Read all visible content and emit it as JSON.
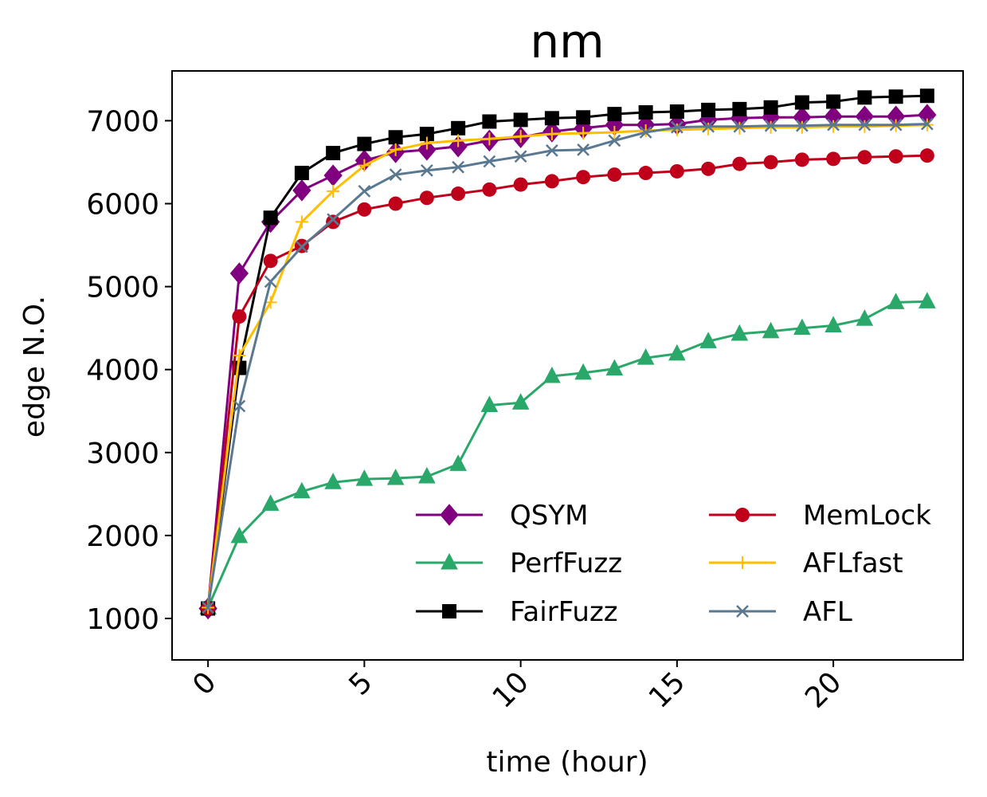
{
  "chart_data": {
    "type": "line",
    "title": "nm",
    "xlabel": "time (hour)",
    "ylabel": "edge N.O.",
    "xlim": [
      -1.15,
      24.15
    ],
    "ylim": [
      500,
      7600
    ],
    "xticks": [
      0,
      5,
      10,
      15,
      20
    ],
    "yticks": [
      1000,
      2000,
      3000,
      4000,
      5000,
      6000,
      7000
    ],
    "x": [
      0,
      1,
      2,
      3,
      4,
      5,
      6,
      7,
      8,
      9,
      10,
      11,
      12,
      13,
      14,
      15,
      16,
      17,
      18,
      19,
      20,
      21,
      22,
      23
    ],
    "legend_position": "lower-right",
    "legend_columns": 2,
    "grid": false,
    "series": [
      {
        "name": "QSYM",
        "color": "#800080",
        "marker": "diamond",
        "values": [
          1120,
          5160,
          5780,
          6160,
          6340,
          6520,
          6620,
          6650,
          6690,
          6760,
          6800,
          6870,
          6910,
          6950,
          6950,
          6960,
          7010,
          7030,
          7040,
          7040,
          7050,
          7050,
          7050,
          7070
        ]
      },
      {
        "name": "PerfFuzz",
        "color": "#2aa86a",
        "marker": "triangle",
        "values": [
          1130,
          1990,
          2380,
          2530,
          2640,
          2680,
          2690,
          2710,
          2860,
          3570,
          3600,
          3920,
          3960,
          4010,
          4140,
          4190,
          4340,
          4430,
          4460,
          4500,
          4530,
          4610,
          4810,
          4820
        ]
      },
      {
        "name": "FairFuzz",
        "color": "#000000",
        "marker": "square",
        "values": [
          1120,
          4020,
          5830,
          6370,
          6610,
          6720,
          6800,
          6840,
          6910,
          6990,
          7010,
          7030,
          7040,
          7080,
          7100,
          7110,
          7130,
          7140,
          7160,
          7220,
          7230,
          7280,
          7290,
          7300
        ]
      },
      {
        "name": "MemLock",
        "color": "#c0001a",
        "marker": "circle",
        "values": [
          1120,
          4640,
          5310,
          5490,
          5780,
          5930,
          6000,
          6070,
          6120,
          6170,
          6230,
          6270,
          6320,
          6350,
          6370,
          6390,
          6420,
          6480,
          6500,
          6530,
          6540,
          6560,
          6570,
          6580
        ]
      },
      {
        "name": "AFLfast",
        "color": "#ffbe00",
        "marker": "plus",
        "values": [
          1130,
          4170,
          4810,
          5780,
          6150,
          6460,
          6650,
          6730,
          6760,
          6780,
          6810,
          6840,
          6850,
          6860,
          6880,
          6890,
          6900,
          6910,
          6920,
          6920,
          6930,
          6930,
          6940,
          6950
        ]
      },
      {
        "name": "AFL",
        "color": "#5a7890",
        "marker": "x",
        "values": [
          1130,
          3560,
          5060,
          5480,
          5810,
          6150,
          6350,
          6400,
          6440,
          6510,
          6570,
          6640,
          6650,
          6760,
          6860,
          6920,
          6930,
          6930,
          6940,
          6940,
          6950,
          6950,
          6950,
          6960
        ]
      }
    ]
  }
}
